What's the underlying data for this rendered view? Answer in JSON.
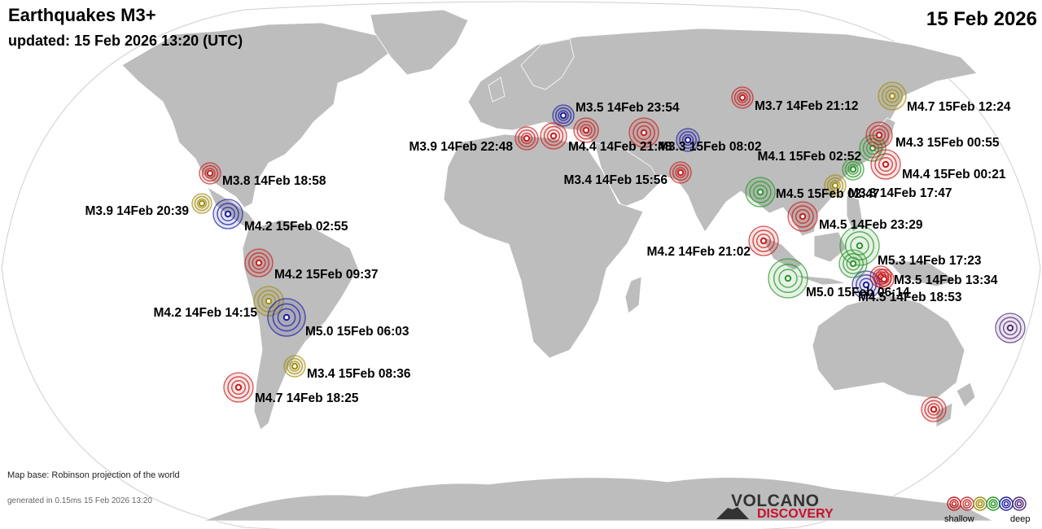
{
  "header": {
    "title": "Earthquakes M3+",
    "updated": "updated: 15 Feb 2026 13:20 (UTC)",
    "date": "15 Feb 2026"
  },
  "footer": {
    "map_base": "Map base: Robinson projection of the world",
    "generated": "generated in 0.15ms 15 Feb 2026 13:20",
    "logo_word1": "VOLCANO",
    "logo_word2": "DISCOVERY"
  },
  "legend": {
    "shallow_label": "shallow",
    "deep_label": "deep",
    "colors": [
      "#c81e1e",
      "#c83c3c",
      "#a08c10",
      "#2a962a",
      "#1e1ea0",
      "#502878"
    ]
  },
  "colors": {
    "land": "#bdbdbd",
    "ocean": "#ffffff",
    "shallow": "#c81e1e",
    "intermediate": "#a08c10",
    "medium": "#2a962a",
    "deep": "#1e1ea0",
    "very_deep": "#502878"
  },
  "quakes": [
    {
      "label": "M3.8 14Feb 18:58",
      "depth_class": "shallow"
    },
    {
      "label": "M3.9 14Feb 20:39",
      "depth_class": "intermediate"
    },
    {
      "label": "M4.2 15Feb 02:55",
      "depth_class": "deep"
    },
    {
      "label": "M4.2 15Feb 09:37",
      "depth_class": "shallow"
    },
    {
      "label": "M4.2 14Feb 14:15",
      "depth_class": "intermediate"
    },
    {
      "label": "M5.0 15Feb 06:03",
      "depth_class": "deep"
    },
    {
      "label": "M3.4 15Feb 08:36",
      "depth_class": "intermediate"
    },
    {
      "label": "M4.7 14Feb 18:25",
      "depth_class": "shallow"
    },
    {
      "label": "M3.5 14Feb 23:54",
      "depth_class": "deep"
    },
    {
      "label": "M3.9 14Feb 22:48",
      "depth_class": "shallow"
    },
    {
      "label": "M4.4 14Feb 21:48",
      "depth_class": "shallow"
    },
    {
      "label": "M3.3 15Feb 08:02",
      "depth_class": "deep"
    },
    {
      "label": "M3.7 14Feb 21:12",
      "depth_class": "shallow"
    },
    {
      "label": "M3.4 14Feb 15:56",
      "depth_class": "shallow"
    },
    {
      "label": "M4.1 15Feb 02:52",
      "depth_class": "medium"
    },
    {
      "label": "M4.7 15Feb 12:24",
      "depth_class": "intermediate"
    },
    {
      "label": "M4.3 15Feb 00:55",
      "depth_class": "shallow"
    },
    {
      "label": "M4.4 15Feb 00:21",
      "depth_class": "shallow"
    },
    {
      "label": "M4.5 15Feb 02:47",
      "depth_class": "medium"
    },
    {
      "label": "M3.8 14Feb 17:47",
      "depth_class": "intermediate"
    },
    {
      "label": "M4.5 14Feb 23:29",
      "depth_class": "shallow"
    },
    {
      "label": "M4.2 14Feb 21:02",
      "depth_class": "shallow"
    },
    {
      "label": "M5.3 14Feb 17:23",
      "depth_class": "medium"
    },
    {
      "label": "M3.5 14Feb 13:34",
      "depth_class": "shallow"
    },
    {
      "label": "M5.0 15Feb 06:14",
      "depth_class": "medium"
    },
    {
      "label": "M4.5 14Feb 18:53",
      "depth_class": "deep"
    },
    {
      "label": "",
      "depth_class": "very_deep"
    },
    {
      "label": "",
      "depth_class": "shallow"
    },
    {
      "label": "",
      "depth_class": "medium"
    },
    {
      "label": "",
      "depth_class": "shallow"
    },
    {
      "label": "",
      "depth_class": "medium"
    },
    {
      "label": "",
      "depth_class": "shallow"
    },
    {
      "label": "",
      "depth_class": "shallow"
    }
  ]
}
